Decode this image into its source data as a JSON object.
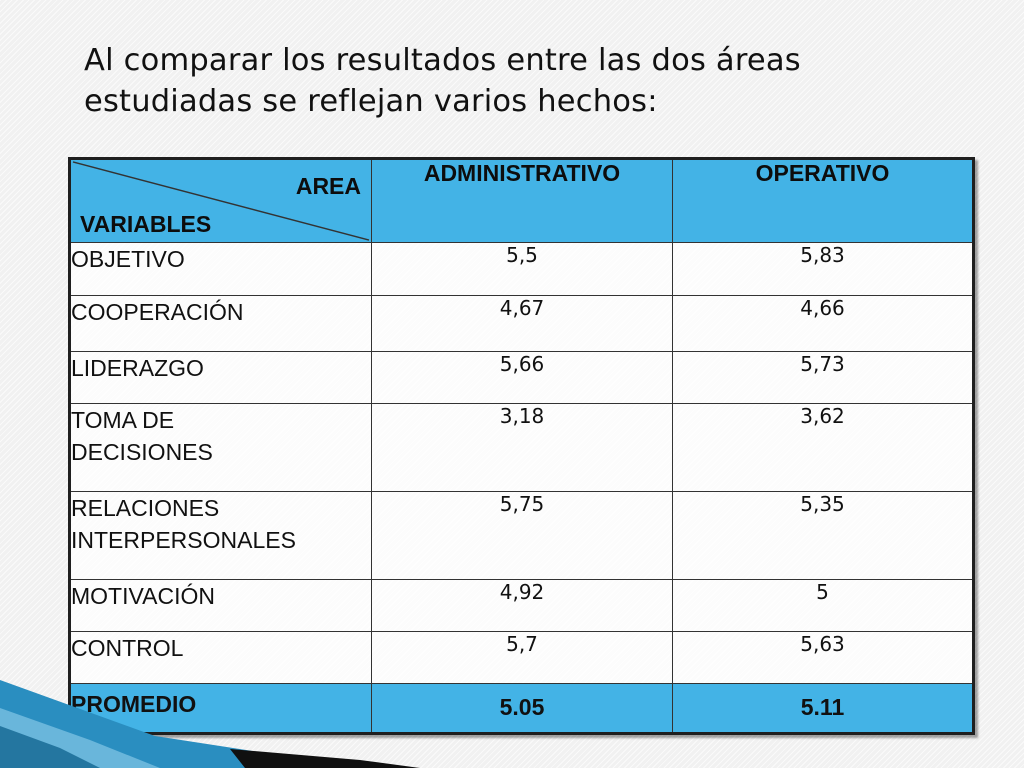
{
  "title": {
    "line1": "Al comparar los resultados entre las dos áreas",
    "line2": "estudiadas se reflejan varios hechos:"
  },
  "table": {
    "corner_top": "AREA",
    "corner_bottom": "VARIABLES",
    "col1": "ADMINISTRATIVO",
    "col2": "OPERATIVO",
    "rows": [
      {
        "label": "OBJETIVO",
        "admin": "5,5",
        "oper": "5,83"
      },
      {
        "label": "COOPERACIÓN",
        "admin": "4,67",
        "oper": "4,66"
      },
      {
        "label": "LIDERAZGO",
        "admin": "5,66",
        "oper": "5,73"
      },
      {
        "label_line1": "TOMA DE",
        "label_line2": "DECISIONES",
        "admin": "3,18",
        "oper": "3,62"
      },
      {
        "label_line1": "RELACIONES",
        "label_line2": "INTERPERSONALES",
        "admin": "5,75",
        "oper": "5,35"
      },
      {
        "label": "MOTIVACIÓN",
        "admin": "4,92",
        "oper": "5"
      },
      {
        "label": "CONTROL",
        "admin": "5,7",
        "oper": "5,63"
      }
    ],
    "footer": {
      "label": "PROMEDIO",
      "admin": "5.05",
      "oper": "5.11"
    }
  },
  "colors": {
    "header_fill": "#43b3e6",
    "border": "#1f1f1f",
    "background": "#f1f1f1",
    "decoration_blue": "#2a8ec0",
    "decoration_dark": "#101010"
  }
}
